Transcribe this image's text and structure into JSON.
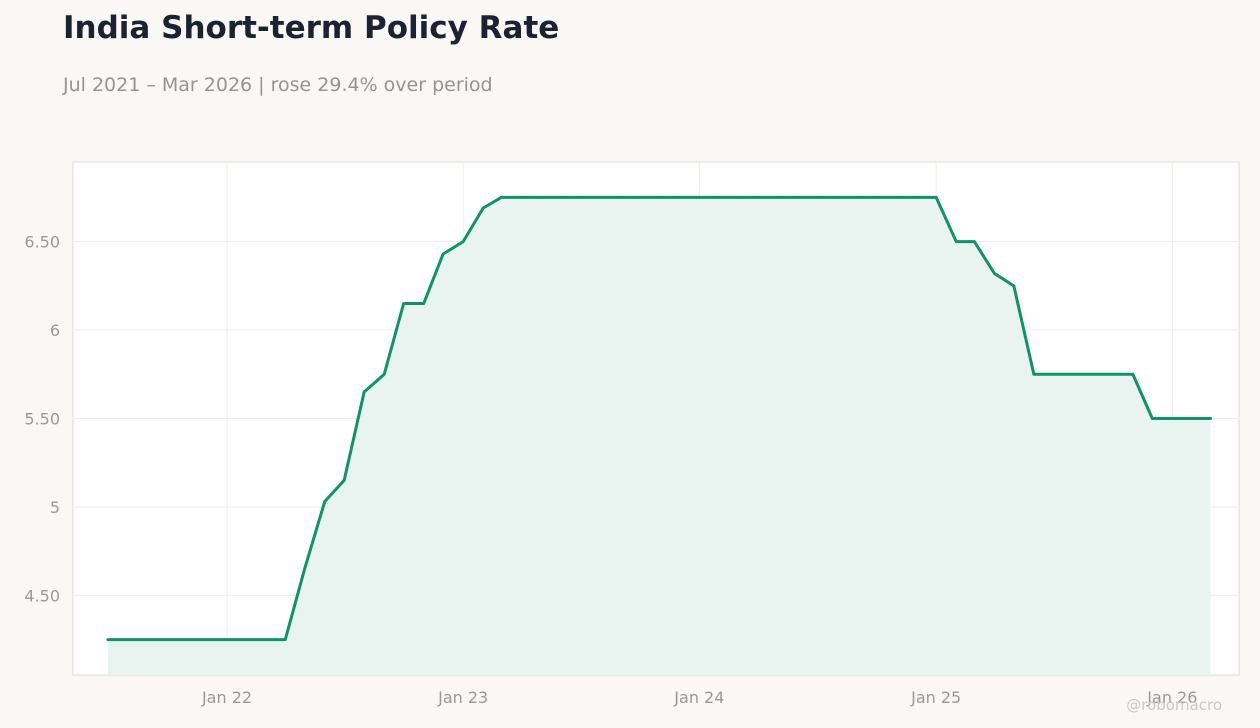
{
  "header": {
    "title": "India Short-term Policy Rate",
    "subtitle": "Jul 2021 – Mar 2026 | rose 29.4% over period"
  },
  "watermark": "@robomacro",
  "colors": {
    "line": "#0e936a",
    "fill": "#e9f4f0",
    "grid": "#efeee9",
    "axis_text": "#9a9a94",
    "plot_bg": "#ffffff",
    "plot_border": "#dcdcd6",
    "page_bg": "#f9f8f4"
  },
  "chart_data": {
    "type": "area",
    "title": "India Short-term Policy Rate",
    "subtitle": "Jul 2021 – Mar 2026 | rose 29.4% over period",
    "xlabel": "",
    "ylabel": "",
    "grid": true,
    "x_ticks": [
      {
        "label": "Jan 22",
        "date": "2022-01-01"
      },
      {
        "label": "Jan 23",
        "date": "2023-01-01"
      },
      {
        "label": "Jan 24",
        "date": "2024-01-01"
      },
      {
        "label": "Jan 25",
        "date": "2025-01-01"
      },
      {
        "label": "Jan 26",
        "date": "2026-01-01"
      }
    ],
    "y_ticks": [
      {
        "label": "4.50",
        "value": 4.5
      },
      {
        "label": "5",
        "value": 5.0
      },
      {
        "label": "5.50",
        "value": 5.5
      },
      {
        "label": "6",
        "value": 6.0
      },
      {
        "label": "6.50",
        "value": 6.5
      }
    ],
    "xlim": [
      "2021-05-08",
      "2026-04-14"
    ],
    "ylim": [
      4.05,
      6.95
    ],
    "series": [
      {
        "points": [
          [
            "2021-07-01",
            4.25
          ],
          [
            "2021-08-01",
            4.25
          ],
          [
            "2021-09-01",
            4.25
          ],
          [
            "2021-10-01",
            4.25
          ],
          [
            "2021-11-01",
            4.25
          ],
          [
            "2021-12-01",
            4.25
          ],
          [
            "2022-01-01",
            4.25
          ],
          [
            "2022-02-01",
            4.25
          ],
          [
            "2022-03-01",
            4.25
          ],
          [
            "2022-04-01",
            4.25
          ],
          [
            "2022-05-01",
            4.65
          ],
          [
            "2022-06-01",
            5.03
          ],
          [
            "2022-07-01",
            5.15
          ],
          [
            "2022-08-01",
            5.65
          ],
          [
            "2022-09-01",
            5.75
          ],
          [
            "2022-10-01",
            6.15
          ],
          [
            "2022-11-01",
            6.15
          ],
          [
            "2022-12-01",
            6.43
          ],
          [
            "2023-01-01",
            6.5
          ],
          [
            "2023-02-01",
            6.69
          ],
          [
            "2023-03-01",
            6.75
          ],
          [
            "2023-04-01",
            6.75
          ],
          [
            "2023-05-01",
            6.75
          ],
          [
            "2023-06-01",
            6.75
          ],
          [
            "2023-07-01",
            6.75
          ],
          [
            "2023-08-01",
            6.75
          ],
          [
            "2023-09-01",
            6.75
          ],
          [
            "2023-10-01",
            6.75
          ],
          [
            "2023-11-01",
            6.75
          ],
          [
            "2023-12-01",
            6.75
          ],
          [
            "2024-01-01",
            6.75
          ],
          [
            "2024-02-01",
            6.75
          ],
          [
            "2024-03-01",
            6.75
          ],
          [
            "2024-04-01",
            6.75
          ],
          [
            "2024-05-01",
            6.75
          ],
          [
            "2024-06-01",
            6.75
          ],
          [
            "2024-07-01",
            6.75
          ],
          [
            "2024-08-01",
            6.75
          ],
          [
            "2024-09-01",
            6.75
          ],
          [
            "2024-10-01",
            6.75
          ],
          [
            "2024-11-01",
            6.75
          ],
          [
            "2024-12-01",
            6.75
          ],
          [
            "2025-01-01",
            6.75
          ],
          [
            "2025-02-01",
            6.5
          ],
          [
            "2025-03-01",
            6.5
          ],
          [
            "2025-04-01",
            6.32
          ],
          [
            "2025-05-01",
            6.25
          ],
          [
            "2025-06-01",
            5.75
          ],
          [
            "2025-07-01",
            5.75
          ],
          [
            "2025-08-01",
            5.75
          ],
          [
            "2025-09-01",
            5.75
          ],
          [
            "2025-10-01",
            5.75
          ],
          [
            "2025-11-01",
            5.75
          ],
          [
            "2025-12-01",
            5.5
          ],
          [
            "2026-01-01",
            5.5
          ],
          [
            "2026-02-01",
            5.5
          ],
          [
            "2026-03-01",
            5.5
          ]
        ]
      }
    ]
  }
}
